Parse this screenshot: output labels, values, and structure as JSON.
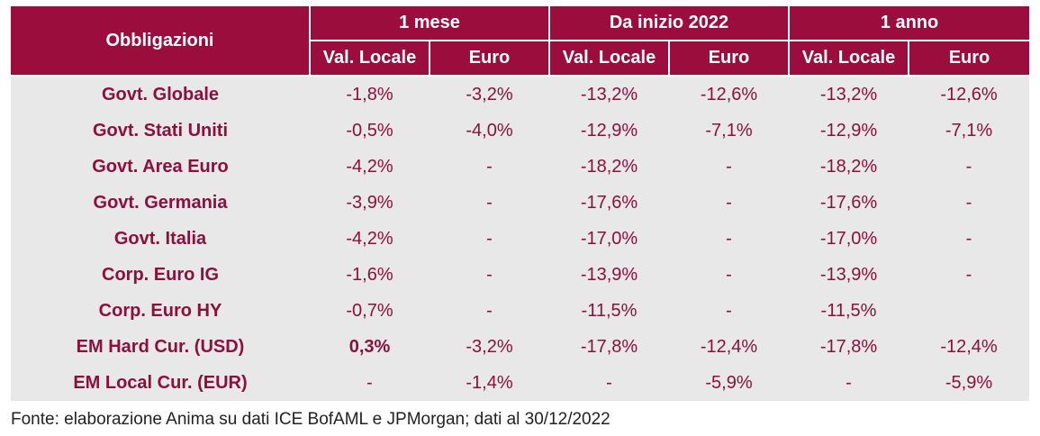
{
  "header": {
    "row_label": "Obbligazioni",
    "groups": [
      "1 mese",
      "Da inizio 2022",
      "1 anno"
    ],
    "subcols": [
      "Val. Locale",
      "Euro",
      "Val. Locale",
      "Euro",
      "Val. Locale",
      "Euro"
    ]
  },
  "rows": [
    {
      "label": "Govt. Globale",
      "level": 0,
      "values": [
        "-1,8%",
        "-3,2%",
        "-13,2%",
        "-12,6%",
        "-13,2%",
        "-12,6%"
      ]
    },
    {
      "label": "Govt. Stati Uniti",
      "level": 1,
      "values": [
        "-0,5%",
        "-4,0%",
        "-12,9%",
        "-7,1%",
        "-12,9%",
        "-7,1%"
      ]
    },
    {
      "label": "Govt. Area Euro",
      "level": 1,
      "values": [
        "-4,2%",
        "-",
        "-18,2%",
        "-",
        "-18,2%",
        "-"
      ]
    },
    {
      "label": "Govt. Germania",
      "level": 2,
      "values": [
        "-3,9%",
        "-",
        "-17,6%",
        "-",
        "-17,6%",
        "-"
      ]
    },
    {
      "label": "Govt. Italia",
      "level": 2,
      "values": [
        "-4,2%",
        "-",
        "-17,0%",
        "-",
        "-17,0%",
        "-"
      ]
    },
    {
      "label": "Corp. Euro IG",
      "level": 0,
      "values": [
        "-1,6%",
        "-",
        "-13,9%",
        "-",
        "-13,9%",
        "-"
      ]
    },
    {
      "label": "Corp. Euro HY",
      "level": 0,
      "values": [
        "-0,7%",
        "-",
        "-11,5%",
        "-",
        "-11,5%",
        ""
      ]
    },
    {
      "label": "EM Hard Cur. (USD)",
      "level": 0,
      "values": [
        "0,3%",
        "-3,2%",
        "-17,8%",
        "-12,4%",
        "-17,8%",
        "-12,4%"
      ]
    },
    {
      "label": "EM Local Cur. (EUR)",
      "level": 0,
      "values": [
        "-",
        "-1,4%",
        "-",
        "-5,9%",
        "-",
        "-5,9%"
      ]
    }
  ],
  "source": "Fonte: elaborazione Anima su dati ICE BofAML e JPMorgan; dati al 30/12/2022",
  "colors": {
    "header_bg": "#9b0d3d",
    "body_bg": "#e8e8e8",
    "negative": "#8c0f3c",
    "positive": "#1a1a1a"
  }
}
